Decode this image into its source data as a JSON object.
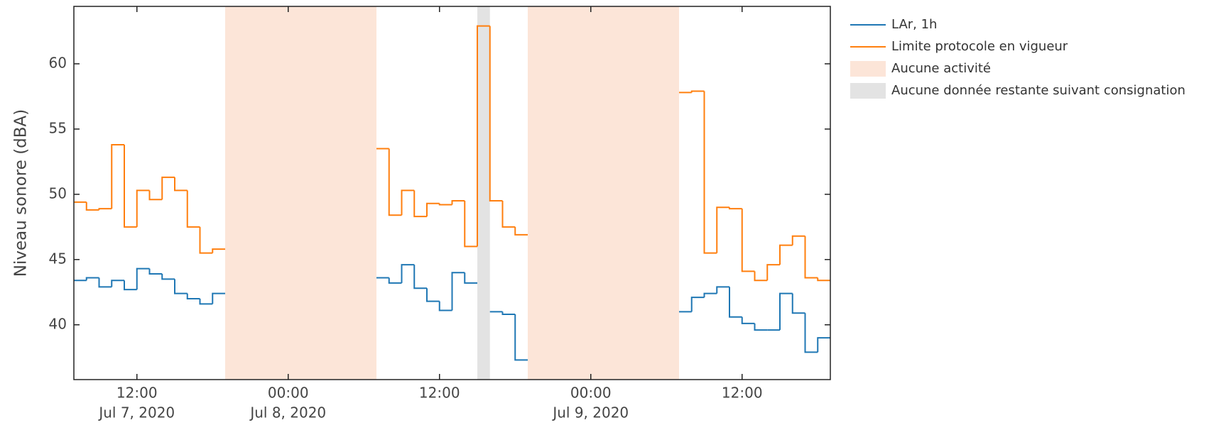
{
  "chart_data": {
    "type": "step",
    "ylabel": "Niveau sonore (dBA)",
    "xlim": [
      "2020-07-07 07:00",
      "2020-07-09 19:00"
    ],
    "ylim": [
      35.8,
      64.4
    ],
    "yticks": [
      40,
      45,
      50,
      55,
      60
    ],
    "xticks": [
      {
        "value": "2020-07-07 12:00",
        "label": "12:00",
        "sublabel": "Jul 7, 2020"
      },
      {
        "value": "2020-07-08 00:00",
        "label": "00:00",
        "sublabel": "Jul 8, 2020"
      },
      {
        "value": "2020-07-08 12:00",
        "label": "12:00"
      },
      {
        "value": "2020-07-09 00:00",
        "label": "00:00",
        "sublabel": "Jul 9, 2020"
      },
      {
        "value": "2020-07-09 12:00",
        "label": "12:00"
      }
    ],
    "x": [
      "2020-07-07 07:00",
      "2020-07-07 08:00",
      "2020-07-07 09:00",
      "2020-07-07 10:00",
      "2020-07-07 11:00",
      "2020-07-07 12:00",
      "2020-07-07 13:00",
      "2020-07-07 14:00",
      "2020-07-07 15:00",
      "2020-07-07 16:00",
      "2020-07-07 17:00",
      "2020-07-07 18:00",
      "2020-07-07 19:00",
      "2020-07-07 20:00",
      "2020-07-07 21:00",
      "2020-07-07 22:00",
      "2020-07-07 23:00",
      "2020-07-08 00:00",
      "2020-07-08 01:00",
      "2020-07-08 02:00",
      "2020-07-08 03:00",
      "2020-07-08 04:00",
      "2020-07-08 05:00",
      "2020-07-08 06:00",
      "2020-07-08 07:00",
      "2020-07-08 08:00",
      "2020-07-08 09:00",
      "2020-07-08 10:00",
      "2020-07-08 11:00",
      "2020-07-08 12:00",
      "2020-07-08 13:00",
      "2020-07-08 14:00",
      "2020-07-08 15:00",
      "2020-07-08 16:00",
      "2020-07-08 17:00",
      "2020-07-08 18:00",
      "2020-07-08 19:00",
      "2020-07-08 20:00",
      "2020-07-08 21:00",
      "2020-07-08 22:00",
      "2020-07-08 23:00",
      "2020-07-09 00:00",
      "2020-07-09 01:00",
      "2020-07-09 02:00",
      "2020-07-09 03:00",
      "2020-07-09 04:00",
      "2020-07-09 05:00",
      "2020-07-09 06:00",
      "2020-07-09 07:00",
      "2020-07-09 08:00",
      "2020-07-09 09:00",
      "2020-07-09 10:00",
      "2020-07-09 11:00",
      "2020-07-09 12:00",
      "2020-07-09 13:00",
      "2020-07-09 14:00",
      "2020-07-09 15:00",
      "2020-07-09 16:00",
      "2020-07-09 17:00",
      "2020-07-09 18:00"
    ],
    "series": [
      {
        "name": "LAr, 1h",
        "color": "#1f77b4",
        "values": [
          43.4,
          43.6,
          42.9,
          43.4,
          42.7,
          44.3,
          43.9,
          43.5,
          42.4,
          42.0,
          41.6,
          42.4,
          null,
          null,
          null,
          null,
          null,
          null,
          null,
          null,
          null,
          null,
          null,
          null,
          43.6,
          43.2,
          44.6,
          42.8,
          41.8,
          41.1,
          44.0,
          43.2,
          null,
          41.0,
          40.8,
          37.3,
          null,
          null,
          null,
          null,
          null,
          null,
          null,
          null,
          null,
          null,
          null,
          null,
          41.0,
          42.1,
          42.4,
          42.9,
          40.6,
          40.1,
          39.6,
          39.6,
          42.4,
          40.9,
          37.9,
          39.0
        ]
      },
      {
        "name": "Limite protocole en vigueur",
        "color": "#ff7f0e",
        "values": [
          49.4,
          48.8,
          48.9,
          53.8,
          47.5,
          50.3,
          49.6,
          51.3,
          50.3,
          47.5,
          45.5,
          45.8,
          null,
          null,
          null,
          null,
          null,
          null,
          null,
          null,
          null,
          null,
          null,
          null,
          53.5,
          48.4,
          50.3,
          48.3,
          49.3,
          49.2,
          49.5,
          46.0,
          62.9,
          49.5,
          47.5,
          46.9,
          null,
          null,
          null,
          null,
          null,
          null,
          null,
          null,
          null,
          null,
          null,
          null,
          57.8,
          57.9,
          45.5,
          49.0,
          48.9,
          44.1,
          43.4,
          44.6,
          46.1,
          46.8,
          43.6,
          43.4
        ]
      }
    ],
    "regions": [
      {
        "name": "Aucune activité",
        "color": "#fce5d8",
        "spans": [
          [
            "2020-07-07 19:00",
            "2020-07-08 07:00"
          ],
          [
            "2020-07-08 19:00",
            "2020-07-09 07:00"
          ]
        ]
      },
      {
        "name": "Aucune donnée restante suivant consignation",
        "color": "#e3e3e3",
        "spans": [
          [
            "2020-07-08 15:00",
            "2020-07-08 16:00"
          ]
        ]
      }
    ]
  }
}
